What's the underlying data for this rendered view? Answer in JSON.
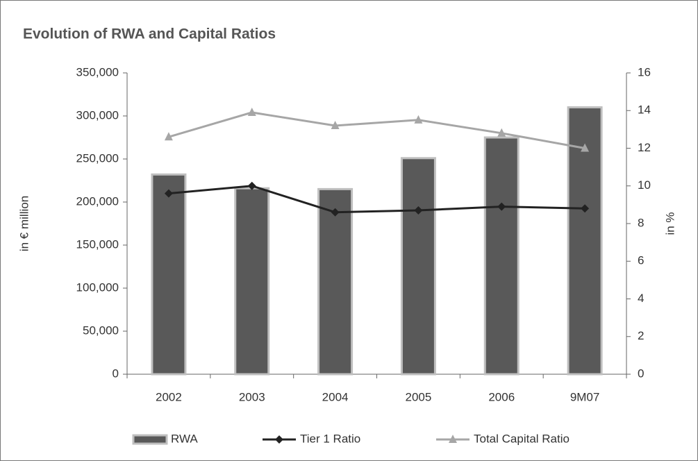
{
  "chart_data": {
    "type": "bar_line",
    "title": "Evolution of RWA and Capital Ratios",
    "y_label": "in € million",
    "y2_label": "in %",
    "categories": [
      "2002",
      "2003",
      "2004",
      "2005",
      "2006",
      "9M07"
    ],
    "series": [
      {
        "name": "RWA",
        "type": "bar",
        "color": "#595959",
        "values": [
          232000,
          216000,
          215000,
          251000,
          275000,
          310000
        ]
      },
      {
        "name": "Tier 1 Ratio",
        "type": "line",
        "axis": "y2",
        "marker": "diamond",
        "color": "#222222",
        "values": [
          9.6,
          10.0,
          8.6,
          8.7,
          8.9,
          8.8
        ]
      },
      {
        "name": "Total Capital Ratio",
        "type": "line",
        "axis": "y2",
        "marker": "triangle",
        "color": "#a6a6a6",
        "values": [
          12.6,
          13.9,
          13.2,
          13.5,
          12.8,
          12.0
        ]
      }
    ],
    "ylim": [
      0,
      350000
    ],
    "yticks": [
      0,
      {
        "value": 50000,
        "label": "50,000"
      },
      {
        "value": 100000,
        "label": "100,000"
      },
      {
        "value": 150000,
        "label": "150,000"
      },
      {
        "value": 200000,
        "label": "200,000"
      },
      {
        "value": 250000,
        "label": "250,000"
      },
      {
        "value": 300000,
        "label": "300,000"
      },
      {
        "value": 350000,
        "label": "350,000"
      }
    ],
    "y2lim": [
      0,
      16
    ],
    "y2ticks": [
      0,
      2,
      4,
      6,
      8,
      10,
      12,
      14,
      16
    ],
    "legend": "bottom"
  }
}
